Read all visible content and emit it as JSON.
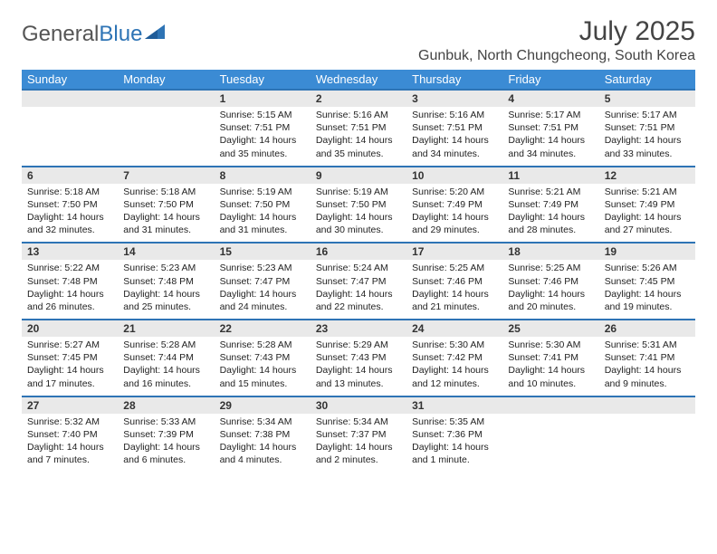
{
  "logo": {
    "text1": "General",
    "text2": "Blue"
  },
  "title": "July 2025",
  "location": "Gunbuk, North Chungcheong, South Korea",
  "colors": {
    "header_bg": "#3b8bd4",
    "header_text": "#ffffff",
    "daynum_bg": "#e9e9e9",
    "border_accent": "#2e74b5",
    "body_text": "#222222"
  },
  "day_headers": [
    "Sunday",
    "Monday",
    "Tuesday",
    "Wednesday",
    "Thursday",
    "Friday",
    "Saturday"
  ],
  "weeks": [
    {
      "nums": [
        "",
        "",
        "1",
        "2",
        "3",
        "4",
        "5"
      ],
      "cells": [
        null,
        null,
        {
          "sunrise": "Sunrise: 5:15 AM",
          "sunset": "Sunset: 7:51 PM",
          "daylight": "Daylight: 14 hours and 35 minutes."
        },
        {
          "sunrise": "Sunrise: 5:16 AM",
          "sunset": "Sunset: 7:51 PM",
          "daylight": "Daylight: 14 hours and 35 minutes."
        },
        {
          "sunrise": "Sunrise: 5:16 AM",
          "sunset": "Sunset: 7:51 PM",
          "daylight": "Daylight: 14 hours and 34 minutes."
        },
        {
          "sunrise": "Sunrise: 5:17 AM",
          "sunset": "Sunset: 7:51 PM",
          "daylight": "Daylight: 14 hours and 34 minutes."
        },
        {
          "sunrise": "Sunrise: 5:17 AM",
          "sunset": "Sunset: 7:51 PM",
          "daylight": "Daylight: 14 hours and 33 minutes."
        }
      ]
    },
    {
      "nums": [
        "6",
        "7",
        "8",
        "9",
        "10",
        "11",
        "12"
      ],
      "cells": [
        {
          "sunrise": "Sunrise: 5:18 AM",
          "sunset": "Sunset: 7:50 PM",
          "daylight": "Daylight: 14 hours and 32 minutes."
        },
        {
          "sunrise": "Sunrise: 5:18 AM",
          "sunset": "Sunset: 7:50 PM",
          "daylight": "Daylight: 14 hours and 31 minutes."
        },
        {
          "sunrise": "Sunrise: 5:19 AM",
          "sunset": "Sunset: 7:50 PM",
          "daylight": "Daylight: 14 hours and 31 minutes."
        },
        {
          "sunrise": "Sunrise: 5:19 AM",
          "sunset": "Sunset: 7:50 PM",
          "daylight": "Daylight: 14 hours and 30 minutes."
        },
        {
          "sunrise": "Sunrise: 5:20 AM",
          "sunset": "Sunset: 7:49 PM",
          "daylight": "Daylight: 14 hours and 29 minutes."
        },
        {
          "sunrise": "Sunrise: 5:21 AM",
          "sunset": "Sunset: 7:49 PM",
          "daylight": "Daylight: 14 hours and 28 minutes."
        },
        {
          "sunrise": "Sunrise: 5:21 AM",
          "sunset": "Sunset: 7:49 PM",
          "daylight": "Daylight: 14 hours and 27 minutes."
        }
      ]
    },
    {
      "nums": [
        "13",
        "14",
        "15",
        "16",
        "17",
        "18",
        "19"
      ],
      "cells": [
        {
          "sunrise": "Sunrise: 5:22 AM",
          "sunset": "Sunset: 7:48 PM",
          "daylight": "Daylight: 14 hours and 26 minutes."
        },
        {
          "sunrise": "Sunrise: 5:23 AM",
          "sunset": "Sunset: 7:48 PM",
          "daylight": "Daylight: 14 hours and 25 minutes."
        },
        {
          "sunrise": "Sunrise: 5:23 AM",
          "sunset": "Sunset: 7:47 PM",
          "daylight": "Daylight: 14 hours and 24 minutes."
        },
        {
          "sunrise": "Sunrise: 5:24 AM",
          "sunset": "Sunset: 7:47 PM",
          "daylight": "Daylight: 14 hours and 22 minutes."
        },
        {
          "sunrise": "Sunrise: 5:25 AM",
          "sunset": "Sunset: 7:46 PM",
          "daylight": "Daylight: 14 hours and 21 minutes."
        },
        {
          "sunrise": "Sunrise: 5:25 AM",
          "sunset": "Sunset: 7:46 PM",
          "daylight": "Daylight: 14 hours and 20 minutes."
        },
        {
          "sunrise": "Sunrise: 5:26 AM",
          "sunset": "Sunset: 7:45 PM",
          "daylight": "Daylight: 14 hours and 19 minutes."
        }
      ]
    },
    {
      "nums": [
        "20",
        "21",
        "22",
        "23",
        "24",
        "25",
        "26"
      ],
      "cells": [
        {
          "sunrise": "Sunrise: 5:27 AM",
          "sunset": "Sunset: 7:45 PM",
          "daylight": "Daylight: 14 hours and 17 minutes."
        },
        {
          "sunrise": "Sunrise: 5:28 AM",
          "sunset": "Sunset: 7:44 PM",
          "daylight": "Daylight: 14 hours and 16 minutes."
        },
        {
          "sunrise": "Sunrise: 5:28 AM",
          "sunset": "Sunset: 7:43 PM",
          "daylight": "Daylight: 14 hours and 15 minutes."
        },
        {
          "sunrise": "Sunrise: 5:29 AM",
          "sunset": "Sunset: 7:43 PM",
          "daylight": "Daylight: 14 hours and 13 minutes."
        },
        {
          "sunrise": "Sunrise: 5:30 AM",
          "sunset": "Sunset: 7:42 PM",
          "daylight": "Daylight: 14 hours and 12 minutes."
        },
        {
          "sunrise": "Sunrise: 5:30 AM",
          "sunset": "Sunset: 7:41 PM",
          "daylight": "Daylight: 14 hours and 10 minutes."
        },
        {
          "sunrise": "Sunrise: 5:31 AM",
          "sunset": "Sunset: 7:41 PM",
          "daylight": "Daylight: 14 hours and 9 minutes."
        }
      ]
    },
    {
      "nums": [
        "27",
        "28",
        "29",
        "30",
        "31",
        "",
        ""
      ],
      "cells": [
        {
          "sunrise": "Sunrise: 5:32 AM",
          "sunset": "Sunset: 7:40 PM",
          "daylight": "Daylight: 14 hours and 7 minutes."
        },
        {
          "sunrise": "Sunrise: 5:33 AM",
          "sunset": "Sunset: 7:39 PM",
          "daylight": "Daylight: 14 hours and 6 minutes."
        },
        {
          "sunrise": "Sunrise: 5:34 AM",
          "sunset": "Sunset: 7:38 PM",
          "daylight": "Daylight: 14 hours and 4 minutes."
        },
        {
          "sunrise": "Sunrise: 5:34 AM",
          "sunset": "Sunset: 7:37 PM",
          "daylight": "Daylight: 14 hours and 2 minutes."
        },
        {
          "sunrise": "Sunrise: 5:35 AM",
          "sunset": "Sunset: 7:36 PM",
          "daylight": "Daylight: 14 hours and 1 minute."
        },
        null,
        null
      ]
    }
  ]
}
